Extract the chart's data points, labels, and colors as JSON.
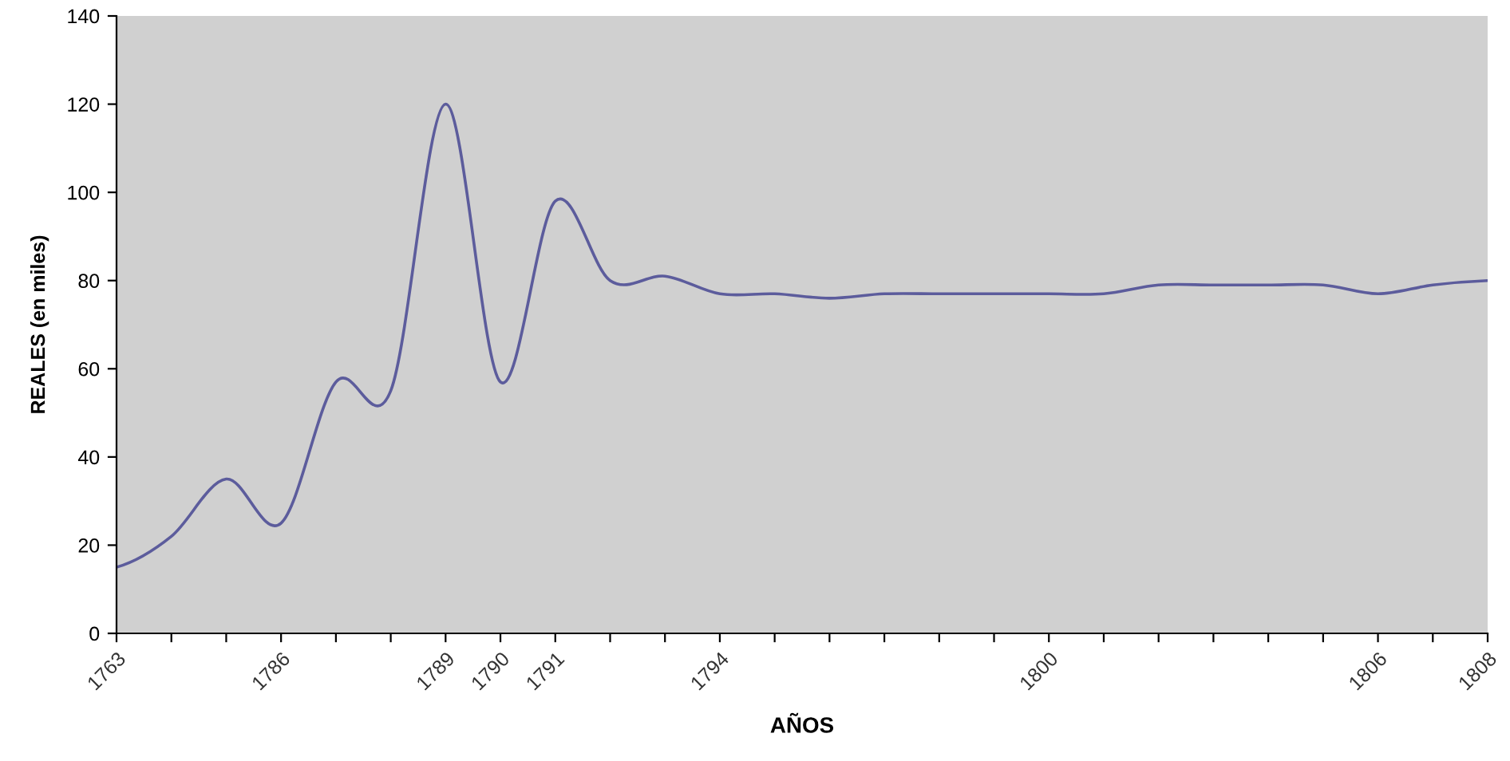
{
  "chart_data": {
    "type": "line",
    "xlabel": "AÑOS",
    "ylabel": "REALES (en miles)",
    "categories": [
      "1763",
      null,
      null,
      "1786",
      null,
      null,
      "1789",
      "1790",
      "1791",
      null,
      null,
      "1794",
      null,
      null,
      null,
      null,
      null,
      "1800",
      null,
      null,
      null,
      null,
      null,
      "1806",
      null,
      "1808"
    ],
    "series": [
      {
        "color": "#5c5c9c",
        "values": [
          15,
          22,
          35,
          25,
          57,
          55,
          120,
          57,
          98,
          80,
          81,
          77,
          77,
          76,
          77,
          77,
          77,
          77,
          77,
          79,
          79,
          79,
          79,
          77,
          79,
          80
        ]
      }
    ],
    "ylim": [
      0,
      140
    ],
    "yticks": [
      0,
      20,
      40,
      60,
      80,
      100,
      120,
      140
    ],
    "grid": false,
    "legend": false,
    "marker": "none",
    "line_style": "solid"
  }
}
